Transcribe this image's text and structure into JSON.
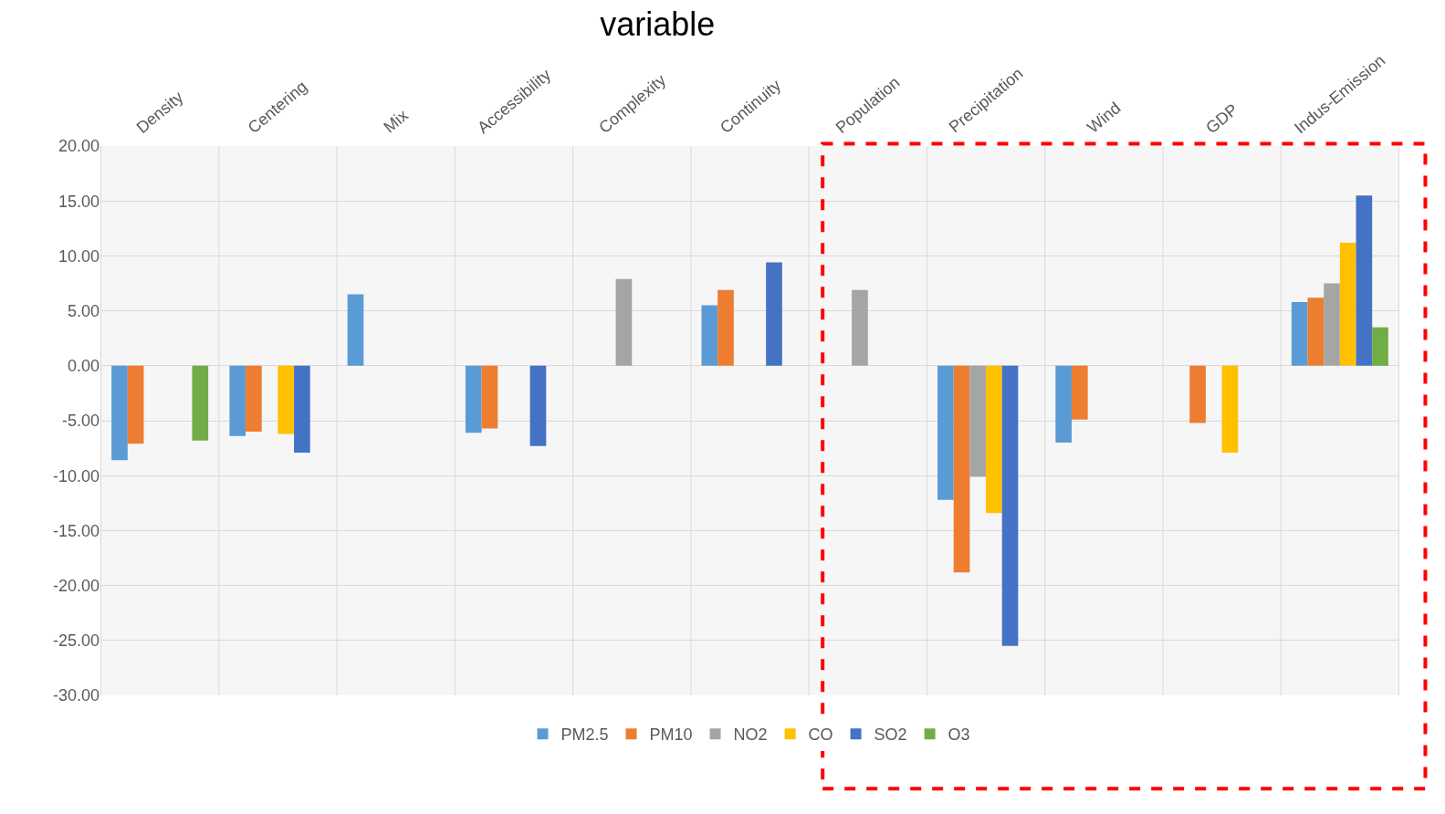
{
  "chart_data": {
    "type": "bar",
    "title": "variable",
    "categories": [
      "Density",
      "Centering",
      "Mix",
      "Accessibility",
      "Complexity",
      "Continuity",
      "Population",
      "Precipitation",
      "Wind",
      "GDP",
      "Indus-Emission"
    ],
    "series": [
      {
        "name": "PM2.5",
        "color": "#5b9bd5",
        "values": [
          -8.6,
          -6.4,
          6.5,
          -6.1,
          null,
          5.5,
          null,
          -12.2,
          -7.0,
          null,
          5.8
        ]
      },
      {
        "name": "PM10",
        "color": "#ed7d31",
        "values": [
          -7.1,
          -6.0,
          null,
          -5.7,
          null,
          6.9,
          null,
          -18.8,
          -4.9,
          -5.2,
          6.2
        ]
      },
      {
        "name": "NO2",
        "color": "#a5a5a5",
        "values": [
          null,
          null,
          null,
          null,
          7.9,
          null,
          6.9,
          -10.1,
          null,
          null,
          7.5
        ]
      },
      {
        "name": "CO",
        "color": "#ffc000",
        "values": [
          null,
          -6.2,
          null,
          null,
          null,
          null,
          null,
          -13.4,
          null,
          -7.9,
          11.2
        ]
      },
      {
        "name": "SO2",
        "color": "#4472c4",
        "values": [
          null,
          -7.9,
          null,
          -7.3,
          null,
          9.4,
          null,
          -25.5,
          null,
          null,
          15.5
        ]
      },
      {
        "name": "O3",
        "color": "#70ad47",
        "values": [
          -6.8,
          null,
          null,
          null,
          null,
          null,
          null,
          null,
          null,
          null,
          3.5
        ]
      }
    ],
    "ylim": [
      -30,
      20
    ],
    "yticks": [
      {
        "value": -30,
        "label": "-30.00"
      },
      {
        "value": -25,
        "label": "-25.00"
      },
      {
        "value": -20,
        "label": "-20.00"
      },
      {
        "value": -15,
        "label": "-15.00"
      },
      {
        "value": -10,
        "label": "-10.00"
      },
      {
        "value": -5,
        "label": "-5.00"
      },
      {
        "value": 0,
        "label": "0.00"
      },
      {
        "value": 5,
        "label": "5.00"
      },
      {
        "value": 10,
        "label": "10.00"
      },
      {
        "value": 15,
        "label": "15.00"
      },
      {
        "value": 20,
        "label": "20.00"
      }
    ],
    "grid": true,
    "legend": "bottom"
  }
}
